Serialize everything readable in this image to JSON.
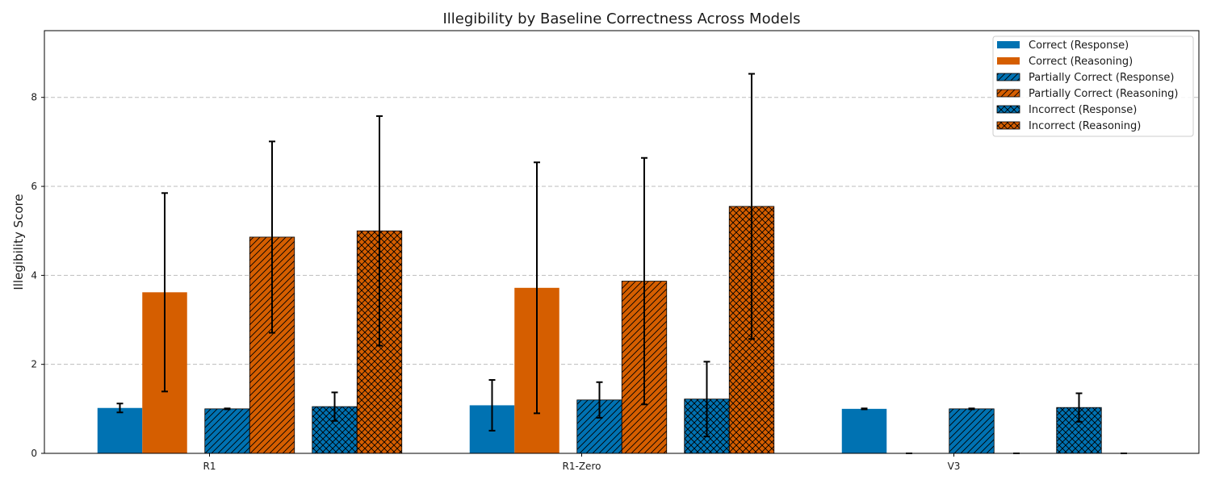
{
  "chart_data": {
    "type": "bar",
    "title": "Illegibility by Baseline Correctness Across Models",
    "xlabel": "",
    "ylabel": "Illegibility Score",
    "ylim": [
      0,
      9.5
    ],
    "yticks": [
      0,
      2,
      4,
      6,
      8
    ],
    "grid": true,
    "legend_position": "top-right",
    "categories": [
      "R1",
      "R1-Zero",
      "V3"
    ],
    "colors": {
      "response": "#0072b2",
      "reasoning": "#d55e00"
    },
    "series": [
      {
        "name": "Correct (Response)",
        "color": "#0072b2",
        "hatch": "none",
        "values": [
          1.02,
          1.08,
          1.0
        ],
        "errors": [
          0.1,
          0.57,
          0.01
        ]
      },
      {
        "name": "Correct (Reasoning)",
        "color": "#d55e00",
        "hatch": "none",
        "values": [
          3.62,
          3.72,
          0
        ],
        "errors": [
          2.23,
          2.82,
          0
        ]
      },
      {
        "name": "Partially Correct (Response)",
        "color": "#0072b2",
        "hatch": "diagonal",
        "values": [
          1.0,
          1.2,
          1.0
        ],
        "errors": [
          0.01,
          0.4,
          0.01
        ]
      },
      {
        "name": "Partially Correct (Reasoning)",
        "color": "#d55e00",
        "hatch": "diagonal",
        "values": [
          4.86,
          3.87,
          0
        ],
        "errors": [
          2.15,
          2.77,
          0
        ]
      },
      {
        "name": "Incorrect (Response)",
        "color": "#0072b2",
        "hatch": "crosshatch",
        "values": [
          1.05,
          1.22,
          1.03
        ],
        "errors": [
          0.32,
          0.84,
          0.32
        ]
      },
      {
        "name": "Incorrect (Reasoning)",
        "color": "#d55e00",
        "hatch": "crosshatch",
        "values": [
          5.0,
          5.55,
          0
        ],
        "errors": [
          2.58,
          2.98,
          0
        ]
      }
    ]
  }
}
